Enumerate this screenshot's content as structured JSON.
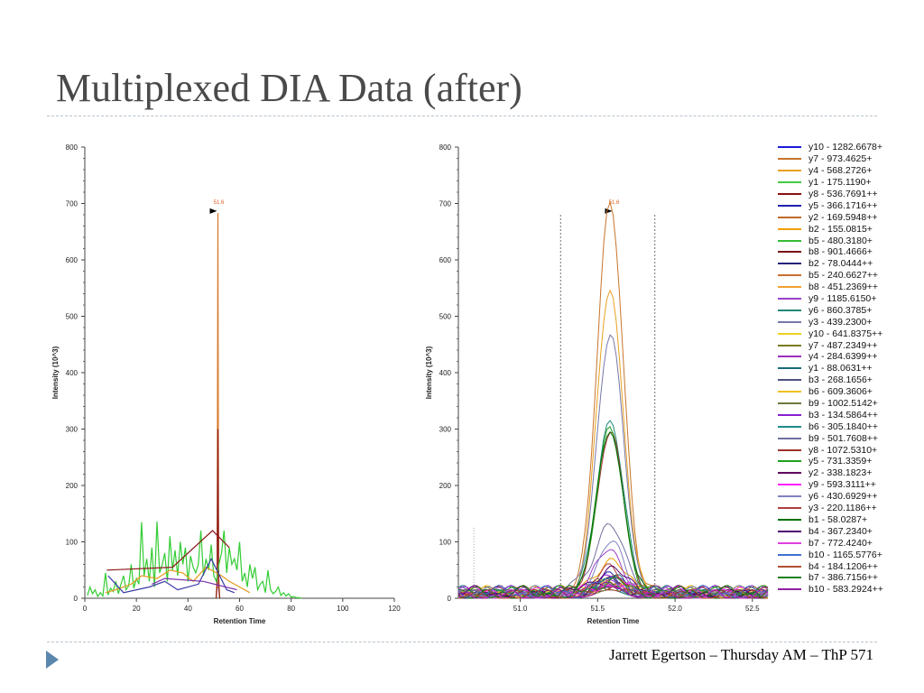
{
  "slide": {
    "title": "Multiplexed DIA Data (after)",
    "footer": "Jarrett Egertson – Thursday AM – ThP 571"
  },
  "chart_data": [
    {
      "type": "line",
      "xlabel": "Retention Time",
      "ylabel": "Intensity (10^3)",
      "xlim": [
        0,
        120
      ],
      "ylim": [
        0,
        800
      ],
      "xticks": [
        0,
        20,
        40,
        60,
        80,
        100,
        120
      ],
      "yticks": [
        0,
        100,
        200,
        300,
        400,
        500,
        600,
        700,
        800
      ],
      "peak_annotation": {
        "label": "51.6",
        "x": 51.6,
        "y": 685
      },
      "series": [
        {
          "color": "#d97a2b",
          "x": [
            50.9,
            51.3,
            51.6,
            51.9,
            52.3
          ],
          "y": [
            0,
            40,
            683,
            40,
            0
          ]
        },
        {
          "color": "#8b1a1a",
          "x": [
            50.9,
            51.3,
            51.6,
            51.9,
            52.3
          ],
          "y": [
            0,
            20,
            300,
            20,
            0
          ]
        },
        {
          "color": "#33cc33",
          "x": [
            1,
            2,
            3,
            4,
            5,
            6,
            7,
            8,
            9,
            10,
            11,
            12,
            13,
            14,
            15,
            16,
            17,
            18,
            19,
            20,
            21,
            22,
            23,
            24,
            25,
            26,
            27,
            28,
            29,
            30,
            31,
            32,
            33,
            34,
            35,
            36,
            37,
            38,
            39,
            40,
            41,
            42,
            43,
            44,
            45,
            46,
            47,
            48,
            49,
            50,
            51,
            52,
            53,
            54,
            55,
            56,
            57,
            58,
            59,
            60,
            61,
            62,
            63,
            64,
            65,
            66,
            67,
            68,
            69,
            70,
            71,
            72,
            73,
            74,
            75,
            76,
            77,
            78,
            79,
            80,
            81,
            82,
            83,
            84
          ],
          "y": [
            5,
            20,
            8,
            15,
            3,
            10,
            4,
            45,
            6,
            18,
            12,
            30,
            8,
            25,
            40,
            15,
            22,
            60,
            18,
            35,
            25,
            135,
            40,
            70,
            30,
            90,
            20,
            136,
            45,
            60,
            80,
            30,
            110,
            50,
            85,
            40,
            100,
            60,
            90,
            30,
            75,
            55,
            45,
            60,
            120,
            40,
            70,
            50,
            95,
            40,
            30,
            60,
            80,
            120,
            45,
            90,
            60,
            70,
            50,
            100,
            30,
            45,
            20,
            60,
            35,
            55,
            15,
            25,
            30,
            10,
            50,
            15,
            8,
            12,
            20,
            5,
            10,
            4,
            8,
            2,
            3,
            1,
            1,
            0
          ]
        },
        {
          "color": "#e69a1a",
          "x": [
            8,
            12,
            18,
            22,
            28,
            33,
            38,
            42,
            47,
            53,
            56,
            60,
            64
          ],
          "y": [
            10,
            15,
            25,
            40,
            35,
            50,
            45,
            30,
            55,
            40,
            30,
            20,
            10
          ]
        },
        {
          "color": "#3a3aa8",
          "x": [
            9,
            15,
            25,
            31,
            36,
            44,
            49,
            55,
            58
          ],
          "y": [
            40,
            10,
            20,
            30,
            15,
            25,
            70,
            15,
            10
          ]
        },
        {
          "color": "#8b1a1a",
          "x": [
            8.5,
            34,
            49.5,
            56
          ],
          "y": [
            50,
            55,
            120,
            90
          ]
        },
        {
          "color": "#7b2da8",
          "x": [
            26,
            31,
            46,
            59
          ],
          "y": [
            25,
            35,
            30,
            15
          ]
        }
      ]
    },
    {
      "type": "line",
      "xlabel": "Retention Time",
      "ylabel": "Intensity (10^3)",
      "xlim": [
        50.6,
        52.6
      ],
      "ylim": [
        0,
        800
      ],
      "xticks": [
        51.0,
        51.5,
        52.0,
        52.5
      ],
      "yticks": [
        0,
        100,
        200,
        300,
        400,
        500,
        600,
        700,
        800
      ],
      "peak_annotation": {
        "label": "51.6",
        "x": 51.6,
        "y": 685
      },
      "integration_boundaries": [
        51.26,
        51.87
      ],
      "legend_position": "right",
      "series": [
        {
          "name": "y10 - 1282.6678+",
          "color": "#1a1adb",
          "peak": 30
        },
        {
          "name": "y7 - 973.4625+",
          "color": "#c8742a",
          "peak": 683
        },
        {
          "name": "y4 - 568.2726+",
          "color": "#e8a020",
          "peak": 545
        },
        {
          "name": "y1 - 175.1190+",
          "color": "#44cc44",
          "peak": 20
        },
        {
          "name": "y8 - 536.7691++",
          "color": "#8b1010",
          "peak": 15
        },
        {
          "name": "y5 - 366.1716++",
          "color": "#2020b0",
          "peak": 25
        },
        {
          "name": "y2 - 169.5948++",
          "color": "#c06a2a",
          "peak": 20
        },
        {
          "name": "b2 - 155.0815+",
          "color": "#f0a000",
          "peak": 60
        },
        {
          "name": "b5 - 480.3180+",
          "color": "#33bb33",
          "peak": 30
        },
        {
          "name": "b8 - 901.4666+",
          "color": "#7a1010",
          "peak": 20
        },
        {
          "name": "b2 - 78.0444++",
          "color": "#23237a",
          "peak": 15
        },
        {
          "name": "b5 - 240.6627++",
          "color": "#c87030",
          "peak": 25
        },
        {
          "name": "b8 - 451.2369++",
          "color": "#f0a030",
          "peak": 20
        },
        {
          "name": "y9 - 1185.6150+",
          "color": "#9a40c8",
          "peak": 75
        },
        {
          "name": "y6 - 860.3785+",
          "color": "#22887a",
          "peak": 315
        },
        {
          "name": "y3 - 439.2300+",
          "color": "#7777aa",
          "peak": 457
        },
        {
          "name": "y10 - 641.8375++",
          "color": "#f0d020",
          "peak": 15
        },
        {
          "name": "y7 - 487.2349++",
          "color": "#7a7a20",
          "peak": 20
        },
        {
          "name": "y4 - 284.6399++",
          "color": "#9a30c0",
          "peak": 30
        },
        {
          "name": "y1 - 88.0631++",
          "color": "#1a6a7a",
          "peak": 25
        },
        {
          "name": "b3 - 268.1656+",
          "color": "#505080",
          "peak": 15
        },
        {
          "name": "b6 - 609.3606+",
          "color": "#f0c020",
          "peak": 20
        },
        {
          "name": "b9 - 1002.5142+",
          "color": "#6a7a3a",
          "peak": 15
        },
        {
          "name": "b3 - 134.5864++",
          "color": "#8a20d0",
          "peak": 25
        },
        {
          "name": "b6 - 305.1840++",
          "color": "#208a8a",
          "peak": 15
        },
        {
          "name": "b9 - 501.7608++",
          "color": "#7070a0",
          "peak": 128
        },
        {
          "name": "y8 - 1072.5310+",
          "color": "#a03030",
          "peak": 290
        },
        {
          "name": "y5 - 731.3359+",
          "color": "#20a020",
          "peak": 285
        },
        {
          "name": "y2 - 338.1823+",
          "color": "#600060",
          "peak": 20
        },
        {
          "name": "y9 - 593.3111++",
          "color": "#ff20ff",
          "peak": 15
        },
        {
          "name": "y6 - 430.6929++",
          "color": "#8080c0",
          "peak": 95
        },
        {
          "name": "y3 - 220.1186++",
          "color": "#b04040",
          "peak": 40
        },
        {
          "name": "b1 - 58.0287+",
          "color": "#007000",
          "peak": 295
        },
        {
          "name": "b4 - 367.2340+",
          "color": "#500070",
          "peak": 45
        },
        {
          "name": "b7 - 772.4240+",
          "color": "#e040e0",
          "peak": 15
        },
        {
          "name": "b10 - 1165.5776+",
          "color": "#4070d0",
          "peak": 20
        },
        {
          "name": "b4 - 184.1206++",
          "color": "#b05030",
          "peak": 15
        },
        {
          "name": "b7 - 386.7156++",
          "color": "#208020",
          "peak": 20
        },
        {
          "name": "b10 - 583.2924++",
          "color": "#9020a0",
          "peak": 15
        }
      ]
    }
  ]
}
